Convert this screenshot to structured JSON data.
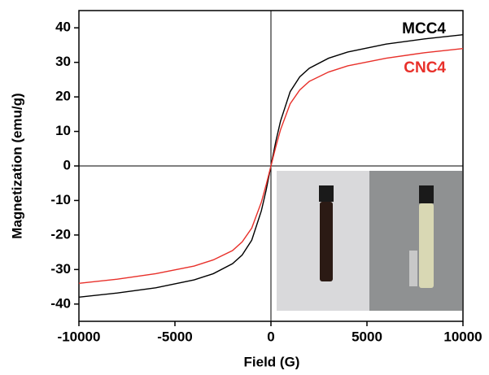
{
  "chart_data": {
    "type": "line",
    "x_label": "Field (G)",
    "y_label": "Magnetization (emu/g)",
    "x": [
      -10000,
      -8000,
      -6000,
      -4000,
      -3000,
      -2000,
      -1500,
      -1000,
      -500,
      -250,
      0,
      250,
      500,
      1000,
      1500,
      2000,
      3000,
      4000,
      6000,
      8000,
      10000
    ],
    "series": [
      {
        "name": "MCC4",
        "color": "#000000",
        "values": [
          -38,
          -36.8,
          -35.3,
          -33,
          -31.2,
          -28.3,
          -25.8,
          -21.5,
          -13,
          -7,
          0,
          7,
          13,
          21.5,
          25.8,
          28.3,
          31.2,
          33,
          35.3,
          36.8,
          38
        ]
      },
      {
        "name": "CNC4",
        "color": "#e8302a",
        "values": [
          -34,
          -32.8,
          -31.2,
          -29,
          -27.2,
          -24.5,
          -22,
          -18,
          -10.5,
          -5.5,
          0,
          5.5,
          10.5,
          18,
          22,
          24.5,
          27.2,
          29,
          31.2,
          32.8,
          34
        ]
      }
    ],
    "xlim": [
      -10000,
      10000
    ],
    "xticks": [
      -10000,
      -5000,
      0,
      5000,
      10000
    ],
    "ylim": [
      -45,
      45
    ],
    "yticks": [
      -40,
      -30,
      -20,
      -10,
      0,
      10,
      20,
      30,
      40
    ]
  }
}
